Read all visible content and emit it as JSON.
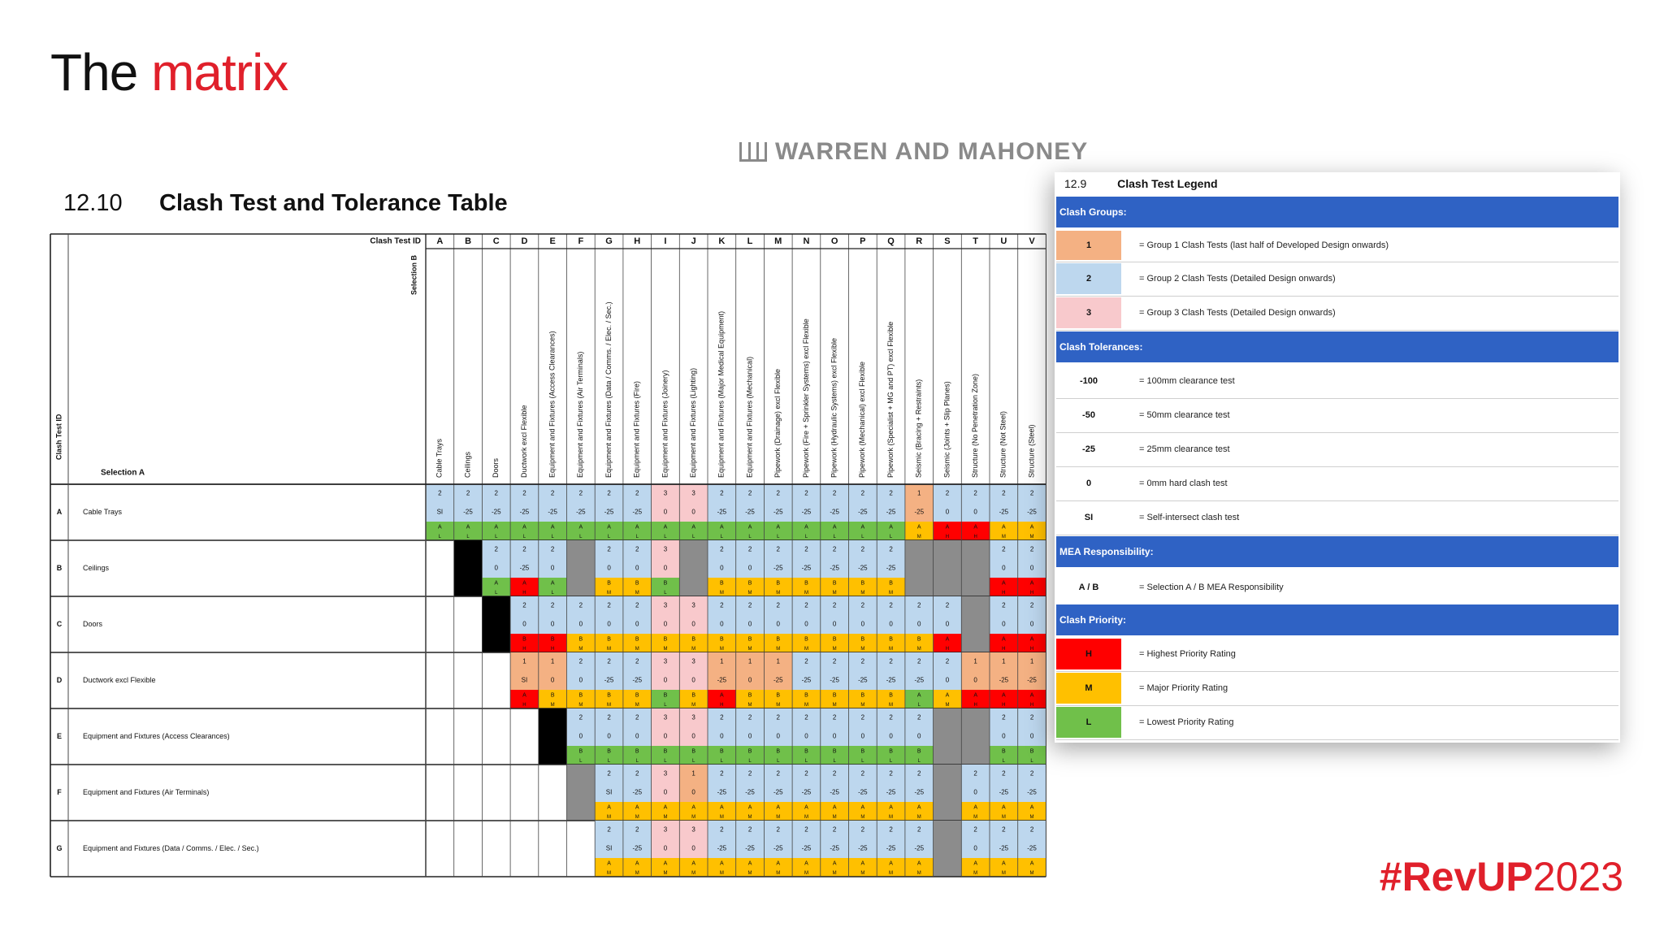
{
  "slide": {
    "title_prefix": "The",
    "title_accent": "matrix",
    "hashtag_bold": "#RevUP",
    "hashtag_year": "2023"
  },
  "logo": "WARREN AND MAHONEY",
  "section": {
    "number": "12.10",
    "title": "Clash Test and Tolerance Table"
  },
  "matrix": {
    "clash_test_id_header": "Clash Test ID",
    "selection_b_label": "Selection B",
    "selection_a_label": "Selection A",
    "row_id_header": "Clash Test ID",
    "columns": [
      "A",
      "B",
      "C",
      "D",
      "E",
      "F",
      "G",
      "H",
      "I",
      "J",
      "K",
      "L",
      "M",
      "N",
      "O",
      "P",
      "Q",
      "R",
      "S",
      "T",
      "U",
      "V"
    ],
    "column_names": [
      "Cable Trays",
      "Ceilings",
      "Doors",
      "Ductwork excl Flexible",
      "Equipment and Fixtures (Access Clearances)",
      "Equipment and Fixtures (Air Terminals)",
      "Equipment and Fixtures (Data / Comms. / Elec. / Sec.)",
      "Equipment and Fixtures (Fire)",
      "Equipment and Fixtures (Joinery)",
      "Equipment and Fixtures (Lighting)",
      "Equipment and Fixtures (Major Medical Equipment)",
      "Equipment and Fixtures (Mechanical)",
      "Pipework (Drainage) excl Flexible",
      "Pipework (Fire + Sprinkler Systems) excl Flexible",
      "Pipework (Hydraulic Systems) excl Flexible",
      "Pipework (Mechanical) excl Flexible",
      "Pipework (Specialist + MG and PT) excl Flexible",
      "Seismic (Bracing + Restraints)",
      "Seismic (Joints + Slip Planes)",
      "Structure (No Penetration Zone)",
      "Structure (Not Steel)",
      "Structure (Steel)"
    ],
    "rows": [
      {
        "id": "A",
        "name": "Cable Trays",
        "cells": [
          {
            "g": "2",
            "t": "SI",
            "r": "A",
            "p": "L"
          },
          {
            "g": "2",
            "t": "-25",
            "r": "A",
            "p": "L"
          },
          {
            "g": "2",
            "t": "-25",
            "r": "A",
            "p": "L"
          },
          {
            "g": "2",
            "t": "-25",
            "r": "A",
            "p": "L"
          },
          {
            "g": "2",
            "t": "-25",
            "r": "A",
            "p": "L"
          },
          {
            "g": "2",
            "t": "-25",
            "r": "A",
            "p": "L"
          },
          {
            "g": "2",
            "t": "-25",
            "r": "A",
            "p": "L"
          },
          {
            "g": "2",
            "t": "-25",
            "r": "A",
            "p": "L"
          },
          {
            "g": "3",
            "t": "0",
            "r": "A",
            "p": "L"
          },
          {
            "g": "3",
            "t": "0",
            "r": "A",
            "p": "L"
          },
          {
            "g": "2",
            "t": "-25",
            "r": "A",
            "p": "L"
          },
          {
            "g": "2",
            "t": "-25",
            "r": "A",
            "p": "L"
          },
          {
            "g": "2",
            "t": "-25",
            "r": "A",
            "p": "L"
          },
          {
            "g": "2",
            "t": "-25",
            "r": "A",
            "p": "L"
          },
          {
            "g": "2",
            "t": "-25",
            "r": "A",
            "p": "L"
          },
          {
            "g": "2",
            "t": "-25",
            "r": "A",
            "p": "L"
          },
          {
            "g": "2",
            "t": "-25",
            "r": "A",
            "p": "L"
          },
          {
            "g": "1",
            "t": "-25",
            "r": "A",
            "p": "M"
          },
          {
            "g": "2",
            "t": "0",
            "r": "A",
            "p": "H"
          },
          {
            "g": "2",
            "t": "0",
            "r": "A",
            "p": "H"
          },
          {
            "g": "2",
            "t": "-25",
            "r": "A",
            "p": "M"
          },
          {
            "g": "2",
            "t": "-25",
            "r": "A",
            "p": "M"
          }
        ]
      },
      {
        "id": "B",
        "name": "Ceilings",
        "cells": [
          null,
          "black",
          {
            "g": "2",
            "t": "0",
            "r": "A",
            "p": "L"
          },
          {
            "g": "2",
            "t": "-25",
            "r": "A",
            "p": "H"
          },
          {
            "g": "2",
            "t": "0",
            "r": "A",
            "p": "L"
          },
          "gray",
          {
            "g": "2",
            "t": "0",
            "r": "B",
            "p": "M"
          },
          {
            "g": "2",
            "t": "0",
            "r": "B",
            "p": "M"
          },
          {
            "g": "3",
            "t": "0",
            "r": "B",
            "p": "L"
          },
          "gray",
          {
            "g": "2",
            "t": "0",
            "r": "B",
            "p": "M"
          },
          {
            "g": "2",
            "t": "0",
            "r": "B",
            "p": "M"
          },
          {
            "g": "2",
            "t": "-25",
            "r": "B",
            "p": "M"
          },
          {
            "g": "2",
            "t": "-25",
            "r": "B",
            "p": "M"
          },
          {
            "g": "2",
            "t": "-25",
            "r": "B",
            "p": "M"
          },
          {
            "g": "2",
            "t": "-25",
            "r": "B",
            "p": "M"
          },
          {
            "g": "2",
            "t": "-25",
            "r": "B",
            "p": "M"
          },
          "gray",
          "gray",
          "gray",
          {
            "g": "2",
            "t": "0",
            "r": "A",
            "p": "H"
          },
          {
            "g": "2",
            "t": "0",
            "r": "A",
            "p": "H"
          }
        ]
      },
      {
        "id": "C",
        "name": "Doors",
        "cells": [
          null,
          null,
          "black",
          {
            "g": "2",
            "t": "0",
            "r": "B",
            "p": "H"
          },
          {
            "g": "2",
            "t": "0",
            "r": "B",
            "p": "H"
          },
          {
            "g": "2",
            "t": "0",
            "r": "B",
            "p": "M"
          },
          {
            "g": "2",
            "t": "0",
            "r": "B",
            "p": "M"
          },
          {
            "g": "2",
            "t": "0",
            "r": "B",
            "p": "M"
          },
          {
            "g": "3",
            "t": "0",
            "r": "B",
            "p": "M"
          },
          {
            "g": "3",
            "t": "0",
            "r": "B",
            "p": "M"
          },
          {
            "g": "2",
            "t": "0",
            "r": "B",
            "p": "M"
          },
          {
            "g": "2",
            "t": "0",
            "r": "B",
            "p": "M"
          },
          {
            "g": "2",
            "t": "0",
            "r": "B",
            "p": "M"
          },
          {
            "g": "2",
            "t": "0",
            "r": "B",
            "p": "M"
          },
          {
            "g": "2",
            "t": "0",
            "r": "B",
            "p": "M"
          },
          {
            "g": "2",
            "t": "0",
            "r": "B",
            "p": "M"
          },
          {
            "g": "2",
            "t": "0",
            "r": "B",
            "p": "M"
          },
          {
            "g": "2",
            "t": "0",
            "r": "B",
            "p": "M"
          },
          {
            "g": "2",
            "t": "0",
            "r": "A",
            "p": "H"
          },
          "gray",
          {
            "g": "2",
            "t": "0",
            "r": "A",
            "p": "H"
          },
          {
            "g": "2",
            "t": "0",
            "r": "A",
            "p": "H"
          }
        ]
      },
      {
        "id": "D",
        "name": "Ductwork excl Flexible",
        "cells": [
          null,
          null,
          null,
          {
            "g": "1",
            "t": "SI",
            "r": "A",
            "p": "H"
          },
          {
            "g": "1",
            "t": "0",
            "r": "B",
            "p": "M"
          },
          {
            "g": "2",
            "t": "0",
            "r": "B",
            "p": "M"
          },
          {
            "g": "2",
            "t": "-25",
            "r": "B",
            "p": "M"
          },
          {
            "g": "2",
            "t": "-25",
            "r": "B",
            "p": "M"
          },
          {
            "g": "3",
            "t": "0",
            "r": "B",
            "p": "L"
          },
          {
            "g": "3",
            "t": "0",
            "r": "B",
            "p": "M"
          },
          {
            "g": "1",
            "t": "-25",
            "r": "A",
            "p": "H"
          },
          {
            "g": "1",
            "t": "0",
            "r": "B",
            "p": "M"
          },
          {
            "g": "1",
            "t": "-25",
            "r": "B",
            "p": "M"
          },
          {
            "g": "2",
            "t": "-25",
            "r": "B",
            "p": "M"
          },
          {
            "g": "2",
            "t": "-25",
            "r": "B",
            "p": "M"
          },
          {
            "g": "2",
            "t": "-25",
            "r": "B",
            "p": "M"
          },
          {
            "g": "2",
            "t": "-25",
            "r": "B",
            "p": "M"
          },
          {
            "g": "2",
            "t": "-25",
            "r": "A",
            "p": "L"
          },
          {
            "g": "2",
            "t": "0",
            "r": "A",
            "p": "M"
          },
          {
            "g": "1",
            "t": "0",
            "r": "A",
            "p": "H"
          },
          {
            "g": "1",
            "t": "-25",
            "r": "A",
            "p": "H"
          },
          {
            "g": "1",
            "t": "-25",
            "r": "A",
            "p": "H"
          }
        ]
      },
      {
        "id": "E",
        "name": "Equipment and Fixtures (Access Clearances)",
        "cells": [
          null,
          null,
          null,
          null,
          "black",
          {
            "g": "2",
            "t": "0",
            "r": "B",
            "p": "L"
          },
          {
            "g": "2",
            "t": "0",
            "r": "B",
            "p": "L"
          },
          {
            "g": "2",
            "t": "0",
            "r": "B",
            "p": "L"
          },
          {
            "g": "3",
            "t": "0",
            "r": "B",
            "p": "L"
          },
          {
            "g": "3",
            "t": "0",
            "r": "B",
            "p": "L"
          },
          {
            "g": "2",
            "t": "0",
            "r": "B",
            "p": "L"
          },
          {
            "g": "2",
            "t": "0",
            "r": "B",
            "p": "L"
          },
          {
            "g": "2",
            "t": "0",
            "r": "B",
            "p": "L"
          },
          {
            "g": "2",
            "t": "0",
            "r": "B",
            "p": "L"
          },
          {
            "g": "2",
            "t": "0",
            "r": "B",
            "p": "L"
          },
          {
            "g": "2",
            "t": "0",
            "r": "B",
            "p": "L"
          },
          {
            "g": "2",
            "t": "0",
            "r": "B",
            "p": "L"
          },
          {
            "g": "2",
            "t": "0",
            "r": "B",
            "p": "L"
          },
          "gray",
          "gray",
          {
            "g": "2",
            "t": "0",
            "r": "B",
            "p": "L"
          },
          {
            "g": "2",
            "t": "0",
            "r": "B",
            "p": "L"
          }
        ]
      },
      {
        "id": "F",
        "name": "Equipment and Fixtures (Air Terminals)",
        "cells": [
          null,
          null,
          null,
          null,
          null,
          "gray",
          {
            "g": "2",
            "t": "SI",
            "r": "A",
            "p": "M"
          },
          {
            "g": "2",
            "t": "-25",
            "r": "A",
            "p": "M"
          },
          {
            "g": "3",
            "t": "0",
            "r": "A",
            "p": "M"
          },
          {
            "g": "1",
            "t": "0",
            "r": "A",
            "p": "M"
          },
          {
            "g": "2",
            "t": "-25",
            "r": "A",
            "p": "M"
          },
          {
            "g": "2",
            "t": "-25",
            "r": "A",
            "p": "M"
          },
          {
            "g": "2",
            "t": "-25",
            "r": "A",
            "p": "M"
          },
          {
            "g": "2",
            "t": "-25",
            "r": "A",
            "p": "M"
          },
          {
            "g": "2",
            "t": "-25",
            "r": "A",
            "p": "M"
          },
          {
            "g": "2",
            "t": "-25",
            "r": "A",
            "p": "M"
          },
          {
            "g": "2",
            "t": "-25",
            "r": "A",
            "p": "M"
          },
          {
            "g": "2",
            "t": "-25",
            "r": "A",
            "p": "M"
          },
          "gray",
          {
            "g": "2",
            "t": "0",
            "r": "A",
            "p": "M"
          },
          {
            "g": "2",
            "t": "-25",
            "r": "A",
            "p": "M"
          },
          {
            "g": "2",
            "t": "-25",
            "r": "A",
            "p": "M"
          }
        ]
      },
      {
        "id": "G",
        "name": "Equipment and Fixtures (Data / Comms. / Elec. / Sec.)",
        "cells": [
          null,
          null,
          null,
          null,
          null,
          null,
          {
            "g": "2",
            "t": "SI",
            "r": "A",
            "p": "M"
          },
          {
            "g": "2",
            "t": "-25",
            "r": "A",
            "p": "M"
          },
          {
            "g": "3",
            "t": "0",
            "r": "A",
            "p": "M"
          },
          {
            "g": "3",
            "t": "0",
            "r": "A",
            "p": "M"
          },
          {
            "g": "2",
            "t": "-25",
            "r": "A",
            "p": "M"
          },
          {
            "g": "2",
            "t": "-25",
            "r": "A",
            "p": "M"
          },
          {
            "g": "2",
            "t": "-25",
            "r": "A",
            "p": "M"
          },
          {
            "g": "2",
            "t": "-25",
            "r": "A",
            "p": "M"
          },
          {
            "g": "2",
            "t": "-25",
            "r": "A",
            "p": "M"
          },
          {
            "g": "2",
            "t": "-25",
            "r": "A",
            "p": "M"
          },
          {
            "g": "2",
            "t": "-25",
            "r": "A",
            "p": "M"
          },
          {
            "g": "2",
            "t": "-25",
            "r": "A",
            "p": "M"
          },
          "gray",
          {
            "g": "2",
            "t": "0",
            "r": "A",
            "p": "M"
          },
          {
            "g": "2",
            "t": "-25",
            "r": "A",
            "p": "M"
          },
          {
            "g": "2",
            "t": "-25",
            "r": "A",
            "p": "M"
          }
        ]
      }
    ]
  },
  "legend": {
    "number": "12.9",
    "title": "Clash Test Legend",
    "groups_header": "Clash Groups:",
    "groups": [
      {
        "key": "1",
        "desc": "= Group 1 Clash Tests (last half of Developed Design onwards)"
      },
      {
        "key": "2",
        "desc": "= Group 2 Clash Tests (Detailed Design onwards)"
      },
      {
        "key": "3",
        "desc": "= Group 3 Clash Tests (Detailed Design onwards)"
      }
    ],
    "tolerances_header": "Clash Tolerances:",
    "tolerances": [
      {
        "key": "-100",
        "desc": "= 100mm clearance test"
      },
      {
        "key": "-50",
        "desc": "= 50mm clearance test"
      },
      {
        "key": "-25",
        "desc": "= 25mm clearance test"
      },
      {
        "key": "0",
        "desc": "= 0mm hard clash test"
      },
      {
        "key": "SI",
        "desc": "= Self-intersect clash test"
      }
    ],
    "mea_header": "MEA Responsibility:",
    "mea": [
      {
        "key": "A / B",
        "desc": "= Selection A / B MEA Responsibility"
      }
    ],
    "priority_header": "Clash Priority:",
    "priority": [
      {
        "key": "H",
        "desc": "= Highest Priority Rating"
      },
      {
        "key": "M",
        "desc": "= Major Priority Rating"
      },
      {
        "key": "L",
        "desc": "= Lowest Priority Rating"
      }
    ]
  },
  "colors": {
    "group1": "#f4b183",
    "group2": "#bdd7ee",
    "group3": "#f8c9cc",
    "resp": "#70c04a",
    "H": "#ff0000",
    "M": "#ffc000",
    "L": "#70c04a",
    "black": "#000000",
    "gray": "#8c8c8c",
    "bar": "#2f62c4",
    "accent": "#e0202b"
  }
}
